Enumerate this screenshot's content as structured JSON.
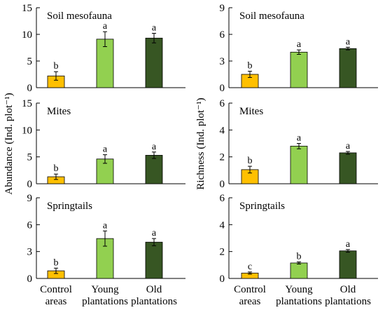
{
  "colors": {
    "control": "#FFC000",
    "young": "#92D050",
    "old": "#375623"
  },
  "categories": [
    [
      "Control",
      "areas"
    ],
    [
      "Young",
      "plantations"
    ],
    [
      "Old",
      "plantations"
    ]
  ],
  "ylabel_left": "Abundance (Ind. plot⁻¹)",
  "ylabel_right": "Richness (Ind. plot⁻¹)",
  "chart_data": [
    {
      "type": "bar",
      "title": "Soil mesofauna",
      "ylabel": "Abundance (Ind. plot⁻¹)",
      "ylim": [
        0,
        15
      ],
      "yticks": [
        0,
        5,
        10,
        15
      ],
      "categories": [
        "Control areas",
        "Young plantations",
        "Old plantations"
      ],
      "values": [
        2.2,
        9.1,
        9.3
      ],
      "errors": [
        0.8,
        1.4,
        0.9
      ],
      "letters": [
        "b",
        "a",
        "a"
      ]
    },
    {
      "type": "bar",
      "title": "Mites",
      "ylabel": "Abundance (Ind. plot⁻¹)",
      "ylim": [
        0,
        15
      ],
      "yticks": [
        0,
        5,
        10,
        15
      ],
      "categories": [
        "Control areas",
        "Young plantations",
        "Old plantations"
      ],
      "values": [
        1.3,
        4.6,
        5.3
      ],
      "errors": [
        0.5,
        0.8,
        0.6
      ],
      "letters": [
        "b",
        "a",
        "a"
      ]
    },
    {
      "type": "bar",
      "title": "Springtails",
      "ylabel": "Abundance (Ind. plot⁻¹)",
      "ylim": [
        0,
        9
      ],
      "yticks": [
        0,
        3,
        6,
        9
      ],
      "categories": [
        "Control areas",
        "Young plantations",
        "Old plantations"
      ],
      "values": [
        0.85,
        4.45,
        4.05
      ],
      "errors": [
        0.3,
        0.85,
        0.4
      ],
      "letters": [
        "b",
        "a",
        "a"
      ]
    },
    {
      "type": "bar",
      "title": "Soil mesofauna",
      "ylabel": "Richness (Ind. plot⁻¹)",
      "ylim": [
        0,
        9
      ],
      "yticks": [
        0,
        3,
        6,
        9
      ],
      "categories": [
        "Control areas",
        "Young plantations",
        "Old plantations"
      ],
      "values": [
        1.5,
        4.0,
        4.4
      ],
      "errors": [
        0.35,
        0.25,
        0.15
      ],
      "letters": [
        "b",
        "a",
        "a"
      ]
    },
    {
      "type": "bar",
      "title": "Mites",
      "ylabel": "Richness (Ind. plot⁻¹)",
      "ylim": [
        0,
        6
      ],
      "yticks": [
        0,
        2,
        4,
        6
      ],
      "categories": [
        "Control areas",
        "Young plantations",
        "Old plantations"
      ],
      "values": [
        1.05,
        2.8,
        2.3
      ],
      "errors": [
        0.25,
        0.2,
        0.1
      ],
      "letters": [
        "b",
        "a",
        "a"
      ]
    },
    {
      "type": "bar",
      "title": "Springtails",
      "ylabel": "Richness (Ind. plot⁻¹)",
      "ylim": [
        0,
        6
      ],
      "yticks": [
        0,
        2,
        4,
        6
      ],
      "categories": [
        "Control areas",
        "Young plantations",
        "Old plantations"
      ],
      "values": [
        0.4,
        1.15,
        2.05
      ],
      "errors": [
        0.08,
        0.08,
        0.1
      ],
      "letters": [
        "c",
        "b",
        "a"
      ]
    }
  ]
}
